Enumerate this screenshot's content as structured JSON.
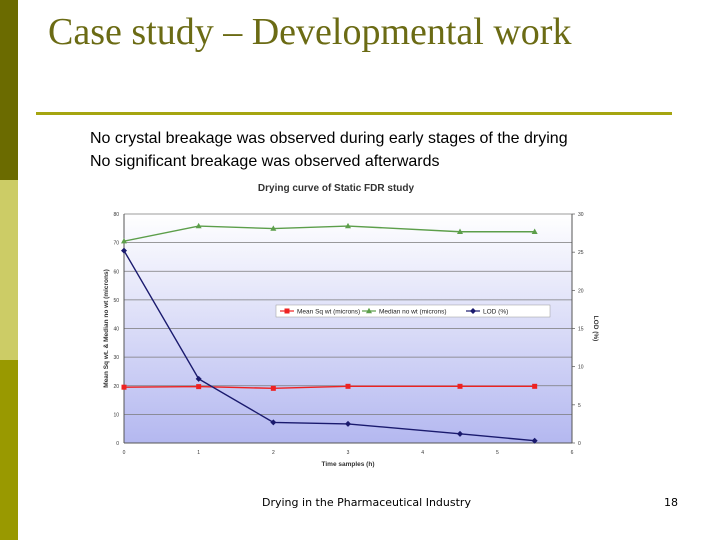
{
  "slide": {
    "title": "Case study – Developmental work",
    "bullets": [
      "No crystal breakage was observed during early stages of the drying",
      "No significant breakage was observed afterwards"
    ],
    "footer_center": "Drying in the Pharmaceutical Industry",
    "page_number": "18"
  },
  "colors": {
    "title": "#6b6b14",
    "rule": "#a5a510",
    "sidebar_dark": "#6b6b00",
    "sidebar_light": "#cccc66",
    "plot_gradient_top": "#ffffff",
    "plot_gradient_bottom": "#b4b8f0"
  },
  "chart_data": {
    "type": "line",
    "title": "Drying curve of Static FDR study",
    "xlabel": "Time samples (h)",
    "ylabel": "Mean Sq wt. & Median no wt (microns)",
    "y2label": "LOD (%)",
    "xlim": [
      0,
      6
    ],
    "ylim": [
      0,
      80
    ],
    "y2lim": [
      0,
      30
    ],
    "x_ticks": [
      "0",
      "1",
      "2",
      "3",
      "4",
      "5",
      "6"
    ],
    "y_ticks": [
      "0",
      "10",
      "20",
      "30",
      "40",
      "50",
      "60",
      "70",
      "80"
    ],
    "y2_ticks": [
      "0",
      "5",
      "10",
      "15",
      "20",
      "25",
      "30"
    ],
    "grid": true,
    "legend_position": "center-right",
    "series": [
      {
        "name": "Mean Sq wt (microns)",
        "axis": "left",
        "color": "#ee2222",
        "marker": "square",
        "x": [
          0,
          1,
          2,
          3,
          4.5,
          5.5
        ],
        "y": [
          19.5,
          19.7,
          19.1,
          19.8,
          19.8,
          19.8
        ]
      },
      {
        "name": "Median no wt (microns)",
        "axis": "left",
        "color": "#5c9e4a",
        "marker": "triangle",
        "x": [
          0,
          1,
          2,
          3,
          4.5,
          5.5
        ],
        "y": [
          70.5,
          75.8,
          74.9,
          75.8,
          73.8,
          73.8
        ]
      },
      {
        "name": "LOD (%)",
        "axis": "right",
        "color": "#1a1a6e",
        "marker": "diamond",
        "x": [
          0,
          1,
          2,
          3,
          4.5,
          5.5
        ],
        "y": [
          25.2,
          8.4,
          2.7,
          2.5,
          1.2,
          0.3
        ]
      }
    ]
  }
}
